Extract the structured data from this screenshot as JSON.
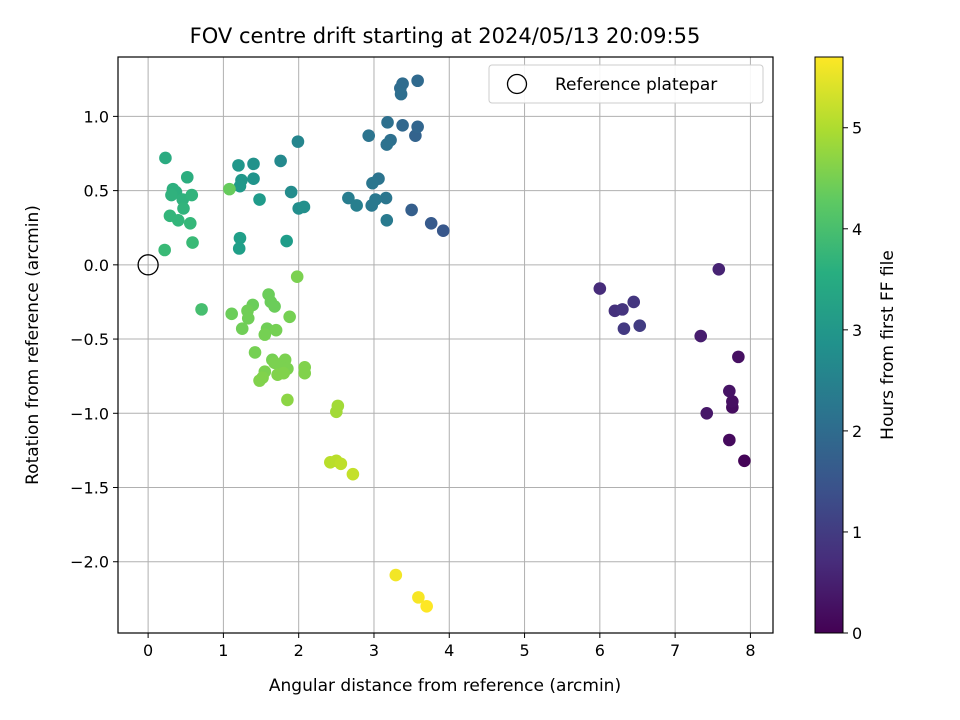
{
  "chart_data": {
    "type": "scatter",
    "title": "FOV centre drift starting at 2024/05/13 20:09:55",
    "xlabel": "Angular distance from reference (arcmin)",
    "ylabel": "Rotation from reference (arcmin)",
    "xlim": [
      -0.4,
      8.3
    ],
    "ylim": [
      -2.48,
      1.4
    ],
    "xticks": [
      "0",
      "1",
      "2",
      "3",
      "4",
      "5",
      "6",
      "7",
      "8"
    ],
    "yticks": [
      "1.0",
      "0.5",
      "0.0",
      "−0.5",
      "−1.0",
      "−1.5",
      "−2.0"
    ],
    "grid": true,
    "legend": {
      "placement": "top-right",
      "entries": [
        "Reference platepar"
      ]
    },
    "reference_point": {
      "x": 0,
      "y": 0
    },
    "colorbar": {
      "label": "Hours from first FF file",
      "range": [
        0,
        5.7
      ],
      "ticks": [
        "0",
        "1",
        "2",
        "3",
        "4",
        "5"
      ],
      "colormap": "viridis"
    },
    "points": [
      {
        "x": 7.92,
        "y": -1.32,
        "c": 0.05
      },
      {
        "x": 7.72,
        "y": -1.18,
        "c": 0.15
      },
      {
        "x": 7.76,
        "y": -0.96,
        "c": 0.2
      },
      {
        "x": 7.76,
        "y": -0.92,
        "c": 0.25
      },
      {
        "x": 7.72,
        "y": -0.85,
        "c": 0.3
      },
      {
        "x": 7.42,
        "y": -1.0,
        "c": 0.35
      },
      {
        "x": 7.84,
        "y": -0.62,
        "c": 0.25
      },
      {
        "x": 7.34,
        "y": -0.48,
        "c": 0.45
      },
      {
        "x": 7.58,
        "y": -0.03,
        "c": 0.55
      },
      {
        "x": 6.0,
        "y": -0.16,
        "c": 0.7
      },
      {
        "x": 6.2,
        "y": -0.31,
        "c": 0.8
      },
      {
        "x": 6.3,
        "y": -0.3,
        "c": 0.85
      },
      {
        "x": 6.45,
        "y": -0.25,
        "c": 0.9
      },
      {
        "x": 6.32,
        "y": -0.43,
        "c": 0.95
      },
      {
        "x": 6.53,
        "y": -0.41,
        "c": 1.0
      },
      {
        "x": 3.92,
        "y": 0.23,
        "c": 1.55
      },
      {
        "x": 3.76,
        "y": 0.28,
        "c": 1.6
      },
      {
        "x": 3.5,
        "y": 0.37,
        "c": 1.7
      },
      {
        "x": 3.55,
        "y": 0.87,
        "c": 1.8
      },
      {
        "x": 3.58,
        "y": 0.93,
        "c": 1.85
      },
      {
        "x": 3.38,
        "y": 0.94,
        "c": 1.9
      },
      {
        "x": 3.58,
        "y": 1.24,
        "c": 1.95
      },
      {
        "x": 3.38,
        "y": 1.22,
        "c": 2.0
      },
      {
        "x": 3.35,
        "y": 1.19,
        "c": 2.0
      },
      {
        "x": 3.36,
        "y": 1.15,
        "c": 2.05
      },
      {
        "x": 3.18,
        "y": 0.96,
        "c": 2.1
      },
      {
        "x": 3.22,
        "y": 0.84,
        "c": 2.1
      },
      {
        "x": 3.17,
        "y": 0.81,
        "c": 2.15
      },
      {
        "x": 2.93,
        "y": 0.87,
        "c": 2.2
      },
      {
        "x": 3.06,
        "y": 0.58,
        "c": 2.2
      },
      {
        "x": 2.98,
        "y": 0.55,
        "c": 2.25
      },
      {
        "x": 3.16,
        "y": 0.45,
        "c": 2.25
      },
      {
        "x": 3.02,
        "y": 0.44,
        "c": 2.3
      },
      {
        "x": 2.97,
        "y": 0.4,
        "c": 2.3
      },
      {
        "x": 3.17,
        "y": 0.3,
        "c": 2.35
      },
      {
        "x": 2.66,
        "y": 0.45,
        "c": 2.4
      },
      {
        "x": 2.77,
        "y": 0.4,
        "c": 2.45
      },
      {
        "x": 1.99,
        "y": 0.83,
        "c": 2.6
      },
      {
        "x": 1.76,
        "y": 0.7,
        "c": 2.7
      },
      {
        "x": 1.9,
        "y": 0.49,
        "c": 2.75
      },
      {
        "x": 2.0,
        "y": 0.38,
        "c": 2.8
      },
      {
        "x": 2.07,
        "y": 0.39,
        "c": 2.85
      },
      {
        "x": 1.4,
        "y": 0.68,
        "c": 2.9
      },
      {
        "x": 1.4,
        "y": 0.58,
        "c": 2.95
      },
      {
        "x": 1.2,
        "y": 0.67,
        "c": 3.0
      },
      {
        "x": 1.24,
        "y": 0.57,
        "c": 3.0
      },
      {
        "x": 1.22,
        "y": 0.53,
        "c": 3.05
      },
      {
        "x": 1.48,
        "y": 0.44,
        "c": 3.1
      },
      {
        "x": 1.84,
        "y": 0.16,
        "c": 3.15
      },
      {
        "x": 1.22,
        "y": 0.18,
        "c": 3.2
      },
      {
        "x": 1.21,
        "y": 0.11,
        "c": 3.2
      },
      {
        "x": 0.23,
        "y": 0.72,
        "c": 3.5
      },
      {
        "x": 0.52,
        "y": 0.59,
        "c": 3.55
      },
      {
        "x": 0.33,
        "y": 0.51,
        "c": 3.6
      },
      {
        "x": 0.37,
        "y": 0.49,
        "c": 3.6
      },
      {
        "x": 0.31,
        "y": 0.47,
        "c": 3.65
      },
      {
        "x": 0.46,
        "y": 0.44,
        "c": 3.65
      },
      {
        "x": 0.58,
        "y": 0.47,
        "c": 3.7
      },
      {
        "x": 0.47,
        "y": 0.38,
        "c": 3.7
      },
      {
        "x": 0.29,
        "y": 0.33,
        "c": 3.75
      },
      {
        "x": 0.4,
        "y": 0.3,
        "c": 3.75
      },
      {
        "x": 0.56,
        "y": 0.28,
        "c": 3.8
      },
      {
        "x": 0.59,
        "y": 0.15,
        "c": 3.85
      },
      {
        "x": 0.22,
        "y": 0.1,
        "c": 3.85
      },
      {
        "x": 0.71,
        "y": -0.3,
        "c": 4.0
      },
      {
        "x": 1.08,
        "y": 0.51,
        "c": 4.35
      },
      {
        "x": 1.98,
        "y": -0.08,
        "c": 4.55
      },
      {
        "x": 1.6,
        "y": -0.2,
        "c": 4.4
      },
      {
        "x": 1.63,
        "y": -0.25,
        "c": 4.4
      },
      {
        "x": 1.68,
        "y": -0.28,
        "c": 4.4
      },
      {
        "x": 1.39,
        "y": -0.27,
        "c": 4.4
      },
      {
        "x": 1.32,
        "y": -0.31,
        "c": 4.45
      },
      {
        "x": 1.33,
        "y": -0.36,
        "c": 4.45
      },
      {
        "x": 1.11,
        "y": -0.33,
        "c": 4.4
      },
      {
        "x": 1.88,
        "y": -0.35,
        "c": 4.5
      },
      {
        "x": 1.25,
        "y": -0.43,
        "c": 4.45
      },
      {
        "x": 1.58,
        "y": -0.43,
        "c": 4.45
      },
      {
        "x": 1.7,
        "y": -0.44,
        "c": 4.5
      },
      {
        "x": 1.55,
        "y": -0.47,
        "c": 4.5
      },
      {
        "x": 1.42,
        "y": -0.59,
        "c": 4.5
      },
      {
        "x": 1.65,
        "y": -0.64,
        "c": 4.5
      },
      {
        "x": 1.82,
        "y": -0.64,
        "c": 4.55
      },
      {
        "x": 1.68,
        "y": -0.66,
        "c": 4.55
      },
      {
        "x": 1.78,
        "y": -0.69,
        "c": 4.55
      },
      {
        "x": 1.85,
        "y": -0.7,
        "c": 4.55
      },
      {
        "x": 1.55,
        "y": -0.72,
        "c": 4.55
      },
      {
        "x": 1.72,
        "y": -0.74,
        "c": 4.6
      },
      {
        "x": 1.8,
        "y": -0.73,
        "c": 4.6
      },
      {
        "x": 2.08,
        "y": -0.69,
        "c": 4.6
      },
      {
        "x": 2.08,
        "y": -0.73,
        "c": 4.6
      },
      {
        "x": 1.52,
        "y": -0.76,
        "c": 4.6
      },
      {
        "x": 1.48,
        "y": -0.78,
        "c": 4.6
      },
      {
        "x": 1.85,
        "y": -0.91,
        "c": 4.7
      },
      {
        "x": 2.52,
        "y": -0.95,
        "c": 4.9
      },
      {
        "x": 2.5,
        "y": -0.99,
        "c": 4.9
      },
      {
        "x": 2.42,
        "y": -1.33,
        "c": 5.1
      },
      {
        "x": 2.5,
        "y": -1.32,
        "c": 5.1
      },
      {
        "x": 2.56,
        "y": -1.34,
        "c": 5.15
      },
      {
        "x": 2.72,
        "y": -1.41,
        "c": 5.2
      },
      {
        "x": 3.29,
        "y": -2.09,
        "c": 5.6
      },
      {
        "x": 3.59,
        "y": -2.24,
        "c": 5.65
      },
      {
        "x": 3.7,
        "y": -2.3,
        "c": 5.7
      }
    ]
  }
}
